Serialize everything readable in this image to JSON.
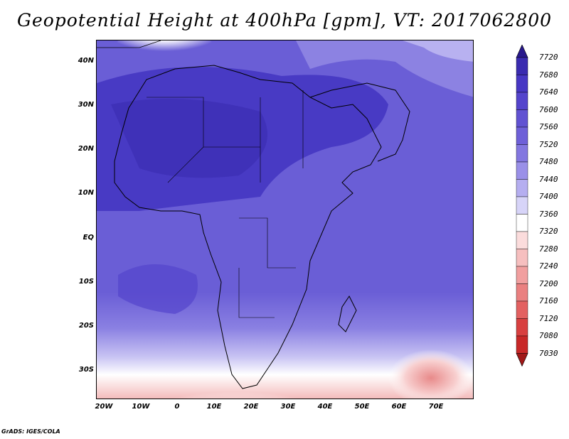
{
  "title": "Geopotential Height at 400hPa [gpm], VT: 2017062800",
  "credit": "GrADS: IGES/COLA",
  "latitude_labels": [
    "40N",
    "30N",
    "20N",
    "10N",
    "EQ",
    "10S",
    "20S",
    "30S"
  ],
  "longitude_labels": [
    "20W",
    "10W",
    "0",
    "10E",
    "20E",
    "30E",
    "40E",
    "50E",
    "60E",
    "70E"
  ],
  "colorbar": {
    "levels": [
      "7720",
      "7680",
      "7640",
      "7600",
      "7560",
      "7520",
      "7480",
      "7440",
      "7400",
      "7360",
      "7320",
      "7280",
      "7240",
      "7200",
      "7160",
      "7120",
      "7080",
      "7030"
    ],
    "colors": [
      "#28198c",
      "#3a2bb0",
      "#4737c4",
      "#5444cc",
      "#6152d2",
      "#6e60d8",
      "#8377e0",
      "#9a90e8",
      "#b5aef0",
      "#d7d4f8",
      "#ffffff",
      "#fbdcdc",
      "#f6bfbf",
      "#f19f9f",
      "#ea8080",
      "#e36161",
      "#d84040",
      "#c82828",
      "#a01818"
    ]
  }
}
